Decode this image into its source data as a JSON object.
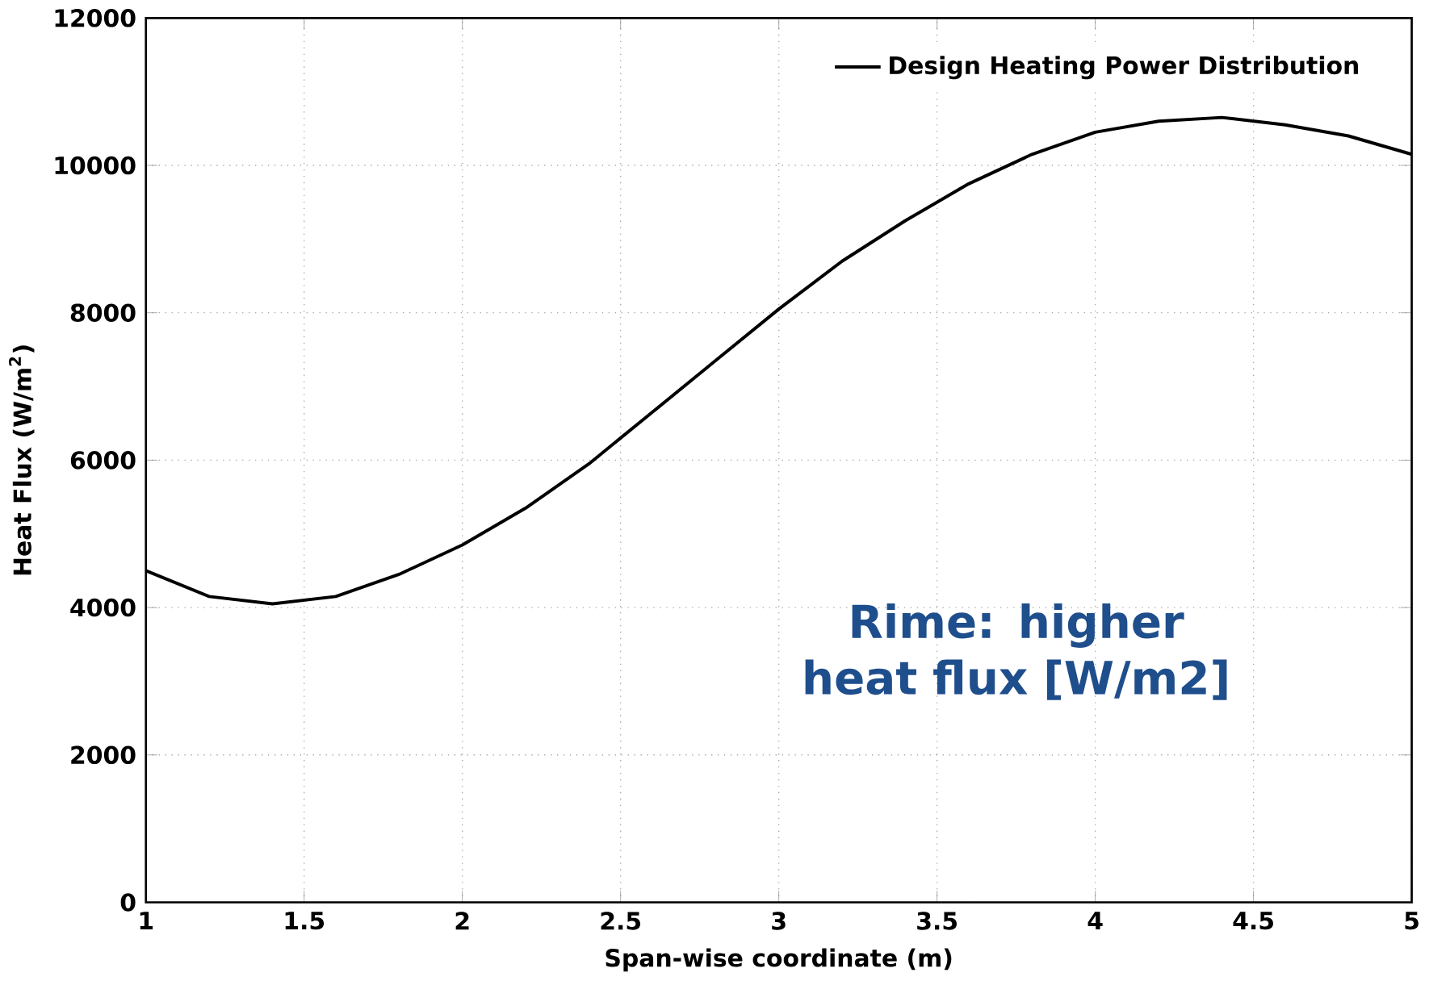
{
  "chart_data": {
    "type": "line",
    "xlabel": "Span-wise coordinate (m)",
    "ylabel": "Heat Flux (W/m$^{2}$)",
    "x": [
      1,
      1.2,
      1.4,
      1.6,
      1.8,
      2,
      2.2,
      2.4,
      2.6,
      2.8,
      3,
      3.2,
      3.4,
      3.6,
      3.8,
      4,
      4.2,
      4.4,
      4.6,
      4.8,
      5
    ],
    "series": [
      {
        "name": "Design Heating Power Distribution",
        "color": "#000000",
        "values": [
          4500,
          4150,
          4050,
          4150,
          4450,
          4850,
          5350,
          5950,
          6650,
          7350,
          8050,
          8700,
          9250,
          9750,
          10150,
          10450,
          10600,
          10650,
          10550,
          10400,
          10150
        ]
      }
    ],
    "xlim": [
      1,
      5
    ],
    "ylim": [
      0,
      12000
    ],
    "xticks": [
      1,
      1.5,
      2,
      2.5,
      3,
      3.5,
      4,
      4.5,
      5
    ],
    "yticks": [
      0,
      2000,
      4000,
      6000,
      8000,
      10000,
      12000
    ],
    "grid": true,
    "legend": "top right",
    "marker": "none",
    "line_style": "solid",
    "annotations": [
      "Rime: higher heat flux [W/m2]"
    ]
  }
}
